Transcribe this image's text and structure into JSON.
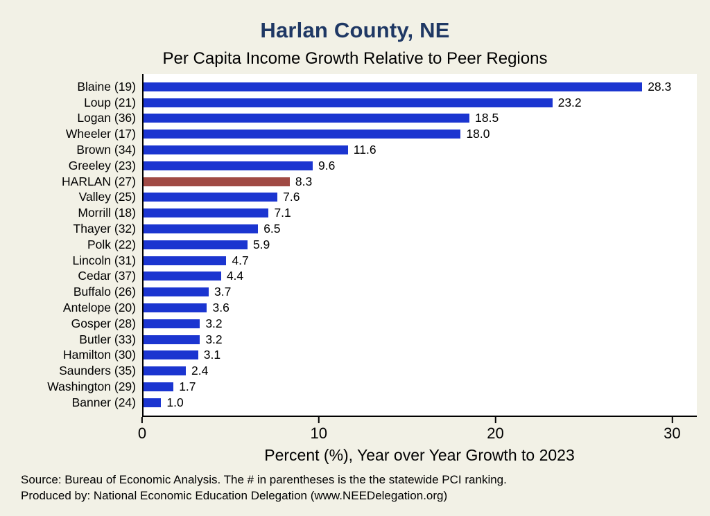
{
  "title": "Harlan County, NE",
  "subtitle": "Per Capita Income Growth Relative to Peer Regions",
  "chart_data": {
    "type": "bar",
    "orientation": "horizontal",
    "title": "Harlan County, NE",
    "subtitle": "Per Capita Income Growth Relative to Peer Regions",
    "categories": [
      "Blaine (19)",
      "Loup (21)",
      "Logan (36)",
      "Wheeler (17)",
      "Brown (34)",
      "Greeley (23)",
      "HARLAN (27)",
      "Valley (25)",
      "Morrill (18)",
      "Thayer (32)",
      "Polk (22)",
      "Lincoln (31)",
      "Cedar (37)",
      "Buffalo (26)",
      "Antelope (20)",
      "Gosper (28)",
      "Butler (33)",
      "Hamilton (30)",
      "Saunders (35)",
      "Washington (29)",
      "Banner (24)"
    ],
    "values": [
      28.3,
      23.2,
      18.5,
      18.0,
      11.6,
      9.6,
      8.3,
      7.6,
      7.1,
      6.5,
      5.9,
      4.7,
      4.4,
      3.7,
      3.6,
      3.2,
      3.2,
      3.1,
      2.4,
      1.7,
      1.0
    ],
    "highlight_category": "HARLAN (27)",
    "bar_color": "#1b35d0",
    "highlight_color": "#a04a44",
    "xlabel": "Percent (%), Year over Year Growth to 2023",
    "ylabel": "",
    "xticks": [
      0,
      10,
      20,
      30
    ],
    "xlim": [
      0,
      31.4
    ],
    "grid": false,
    "legend": "none",
    "plot_background": "#ffffff",
    "page_background": "#f2f1e6",
    "title_color": "#1f3864"
  },
  "footer": {
    "line1": "Source: Bureau of Economic Analysis. The # in parentheses is the the statewide PCI ranking.",
    "line2": "Produced by: National Economic Education Delegation (www.NEEDelegation.org)"
  }
}
